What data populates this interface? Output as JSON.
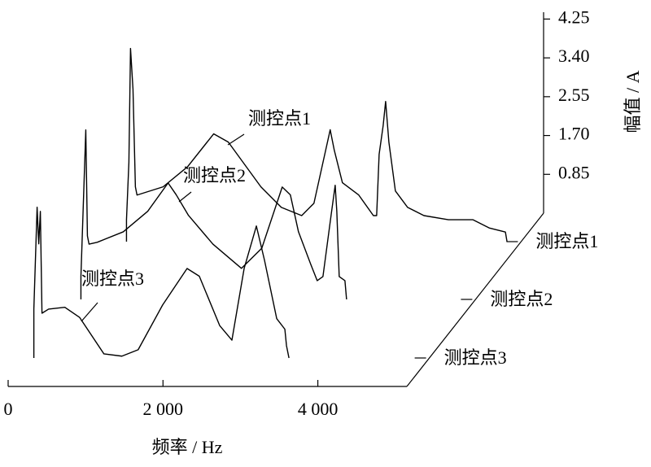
{
  "chart_data": {
    "type": "waterfall-line",
    "xlabel": "频率 / Hz",
    "ylabel": "幅值 / A",
    "xlim": [
      0,
      5150
    ],
    "ylim": [
      0,
      4.4
    ],
    "xticks": [
      0,
      {
        "value": 2000,
        "label": "2 000"
      },
      {
        "value": 4000,
        "label": "4 000"
      }
    ],
    "yticks": [
      0.85,
      {
        "value": 1.7,
        "label": "1.70"
      },
      2.55,
      {
        "value": 3.4,
        "label": "3.40"
      },
      4.25
    ],
    "series": [
      {
        "name": "测控点1",
        "color": "#000000",
        "x": [
          53,
          53,
          84,
          105,
          137,
          168,
          189,
          526,
          842,
          1179,
          1368,
          1789,
          2053,
          2316,
          2474,
          2684,
          2737,
          2842,
          3053,
          3242,
          3284,
          3316,
          3368,
          3400,
          3442,
          3526,
          3684,
          3895,
          4211,
          4526,
          4737,
          4947,
          4968
        ],
        "values": [
          0,
          0.48,
          1.73,
          4.23,
          3.34,
          1.2,
          1.02,
          1.2,
          1.64,
          2.36,
          2.18,
          1.2,
          0.75,
          0.57,
          0.84,
          2.45,
          2,
          1.29,
          1.02,
          0.57,
          0.57,
          1.91,
          2.54,
          3.07,
          2.18,
          1.11,
          0.75,
          0.57,
          0.48,
          0.48,
          0.3,
          0.21,
          0
        ]
      },
      {
        "name": "测控点2",
        "color": "#000000",
        "x": [
          53,
          53,
          116,
          137,
          158,
          263,
          600,
          916,
          1179,
          1284,
          1442,
          1758,
          2126,
          2389,
          2653,
          2758,
          2863,
          3021,
          3105,
          3179,
          3284,
          3337,
          3358,
          3389,
          3463,
          3484
        ],
        "values": [
          0,
          0.5,
          3.71,
          1.39,
          1.21,
          1.25,
          1.48,
          1.93,
          2.55,
          2.29,
          1.84,
          1.21,
          0.68,
          1.12,
          2.46,
          2.29,
          1.48,
          0.77,
          0.41,
          0.5,
          1.84,
          2.5,
          1.93,
          0.5,
          0.41,
          0
        ]
      },
      {
        "name": "测控点3",
        "color": "#000000",
        "x": [
          42,
          42,
          84,
          105,
          126,
          147,
          232,
          442,
          632,
          947,
          1179,
          1389,
          1705,
          2021,
          2179,
          2442,
          2600,
          2758,
          2916,
          3021,
          3179,
          3284,
          3305,
          3337
        ],
        "values": [
          0,
          1.07,
          3.3,
          2.5,
          3.21,
          0.98,
          1.07,
          1.11,
          0.89,
          0.09,
          0.04,
          0.18,
          1.16,
          1.96,
          1.79,
          0.71,
          0.39,
          1.96,
          2.89,
          2.14,
          0.86,
          0.63,
          0.27,
          0
        ]
      }
    ]
  }
}
